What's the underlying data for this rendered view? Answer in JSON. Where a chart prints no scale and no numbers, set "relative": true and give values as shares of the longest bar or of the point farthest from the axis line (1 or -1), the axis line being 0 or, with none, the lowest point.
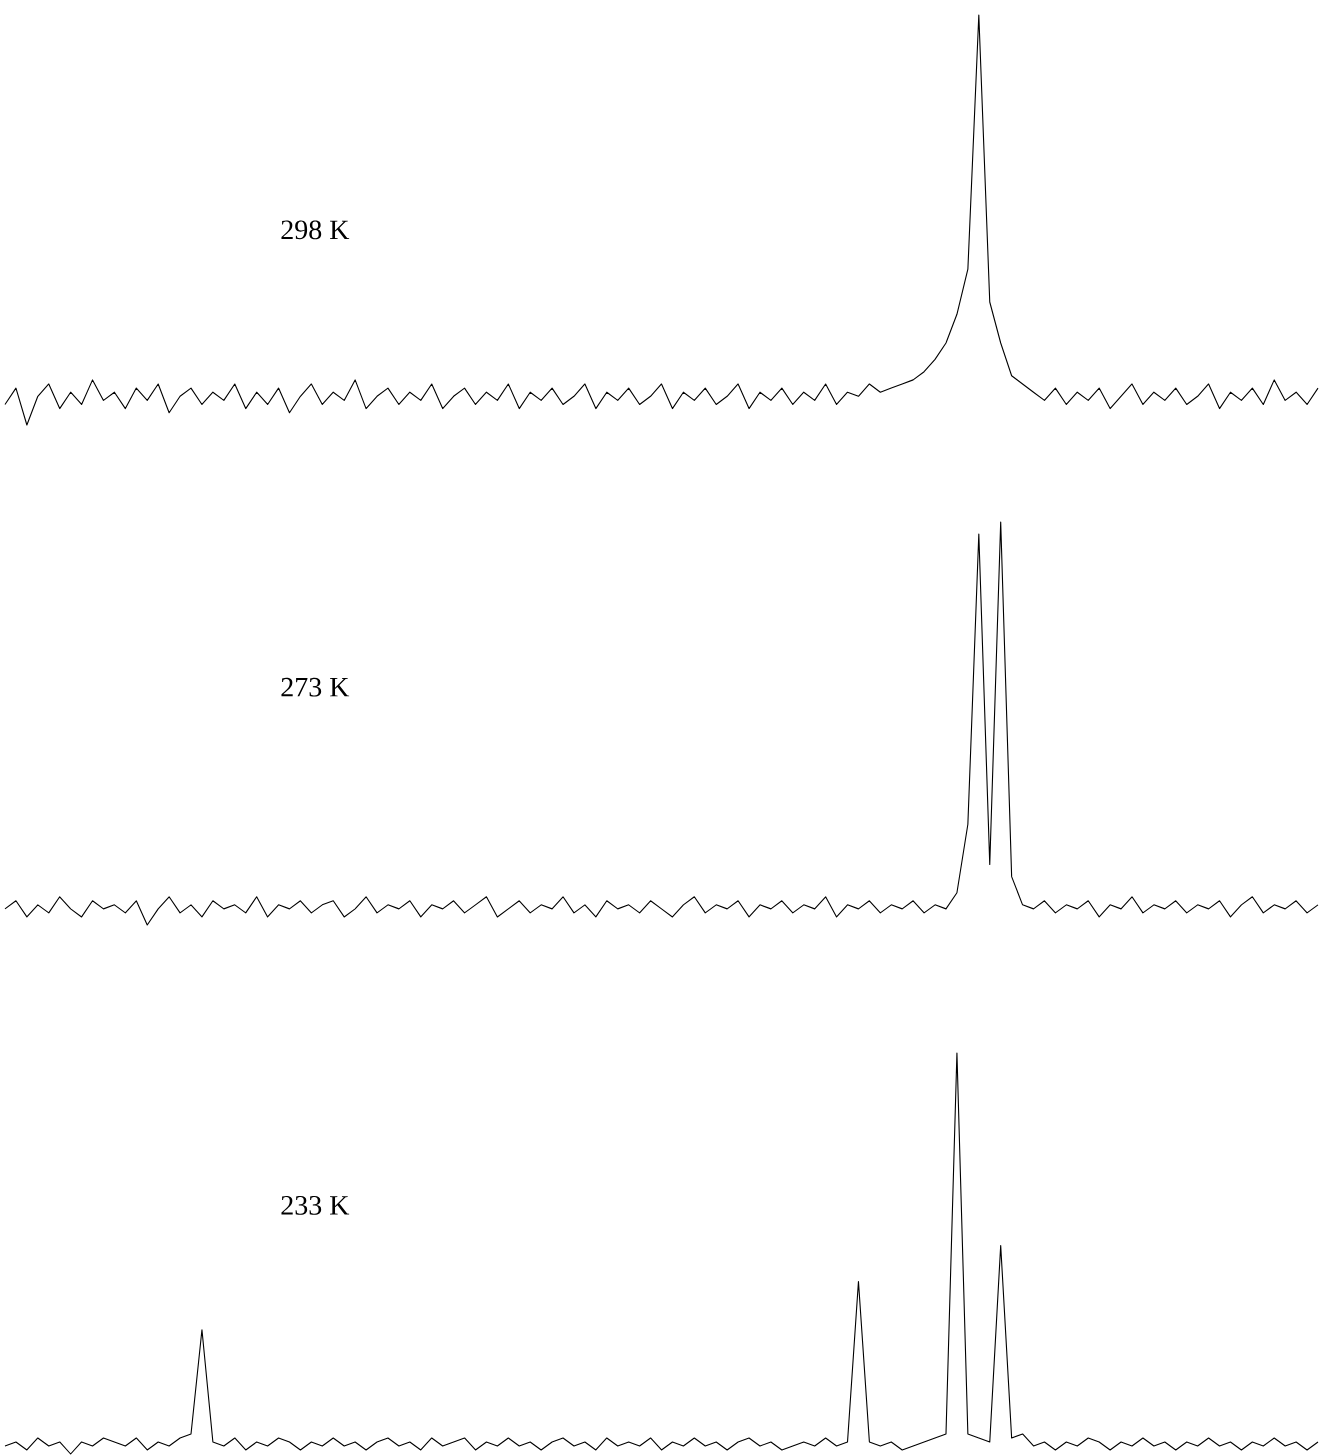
{
  "chart_data": [
    {
      "type": "line",
      "relative": true,
      "color": "#000000",
      "annotations": [
        "298 K"
      ],
      "categories": [
        null,
        null,
        null,
        null,
        null,
        null,
        null,
        null,
        null,
        null,
        null,
        null,
        null,
        null,
        null,
        null,
        null,
        null,
        null,
        null,
        null,
        null,
        null,
        null,
        null,
        null,
        null,
        null,
        null,
        null,
        null,
        null,
        null,
        null,
        null,
        null,
        null,
        null,
        null,
        null,
        null,
        null,
        null,
        null,
        null,
        null,
        null,
        null,
        null,
        null,
        null,
        null,
        null,
        null,
        null,
        null,
        null,
        null,
        null,
        null,
        null,
        null,
        null,
        null,
        null,
        null,
        null,
        null,
        null,
        null,
        null,
        null,
        null,
        null,
        null,
        null,
        null,
        null,
        null,
        null,
        null,
        null,
        null,
        null,
        null,
        null,
        null,
        null,
        null,
        null,
        null,
        null,
        null,
        null,
        null,
        null,
        null,
        null,
        null,
        null,
        null,
        null,
        null,
        null,
        null,
        null,
        null,
        null,
        null,
        null,
        null,
        null,
        null,
        null,
        null,
        null,
        null,
        null,
        null,
        null,
        null
      ],
      "values": [
        0.05,
        0.09,
        0.0,
        0.07,
        0.1,
        0.04,
        0.08,
        0.05,
        0.11,
        0.06,
        0.08,
        0.04,
        0.09,
        0.06,
        0.1,
        0.03,
        0.07,
        0.09,
        0.05,
        0.08,
        0.06,
        0.1,
        0.04,
        0.08,
        0.05,
        0.09,
        0.03,
        0.07,
        0.1,
        0.05,
        0.08,
        0.06,
        0.11,
        0.04,
        0.07,
        0.09,
        0.05,
        0.08,
        0.06,
        0.1,
        0.04,
        0.07,
        0.09,
        0.05,
        0.08,
        0.06,
        0.1,
        0.04,
        0.08,
        0.06,
        0.09,
        0.05,
        0.07,
        0.1,
        0.04,
        0.08,
        0.06,
        0.09,
        0.05,
        0.07,
        0.1,
        0.04,
        0.08,
        0.06,
        0.09,
        0.05,
        0.07,
        0.1,
        0.04,
        0.08,
        0.06,
        0.09,
        0.05,
        0.08,
        0.06,
        0.1,
        0.05,
        0.08,
        0.07,
        0.1,
        0.08,
        0.09,
        0.1,
        0.11,
        0.13,
        0.16,
        0.2,
        0.27,
        0.38,
        1.0,
        0.3,
        0.2,
        0.12,
        0.1,
        0.08,
        0.06,
        0.09,
        0.05,
        0.08,
        0.06,
        0.09,
        0.04,
        0.07,
        0.1,
        0.05,
        0.08,
        0.06,
        0.09,
        0.05,
        0.07,
        0.1,
        0.04,
        0.08,
        0.06,
        0.09,
        0.05,
        0.11,
        0.06,
        0.08,
        0.05,
        0.09
      ]
    },
    {
      "type": "line",
      "relative": true,
      "color": "#000000",
      "annotations": [
        "273 K"
      ],
      "categories": [
        null,
        null,
        null,
        null,
        null,
        null,
        null,
        null,
        null,
        null,
        null,
        null,
        null,
        null,
        null,
        null,
        null,
        null,
        null,
        null,
        null,
        null,
        null,
        null,
        null,
        null,
        null,
        null,
        null,
        null,
        null,
        null,
        null,
        null,
        null,
        null,
        null,
        null,
        null,
        null,
        null,
        null,
        null,
        null,
        null,
        null,
        null,
        null,
        null,
        null,
        null,
        null,
        null,
        null,
        null,
        null,
        null,
        null,
        null,
        null,
        null,
        null,
        null,
        null,
        null,
        null,
        null,
        null,
        null,
        null,
        null,
        null,
        null,
        null,
        null,
        null,
        null,
        null,
        null,
        null,
        null,
        null,
        null,
        null,
        null,
        null,
        null,
        null,
        null,
        null,
        null,
        null,
        null,
        null,
        null,
        null,
        null,
        null,
        null,
        null,
        null,
        null,
        null,
        null,
        null,
        null,
        null,
        null,
        null,
        null,
        null,
        null,
        null,
        null,
        null,
        null,
        null,
        null,
        null,
        null,
        null
      ],
      "values": [
        0.04,
        0.06,
        0.02,
        0.05,
        0.03,
        0.07,
        0.04,
        0.02,
        0.06,
        0.04,
        0.05,
        0.03,
        0.06,
        0.0,
        0.04,
        0.07,
        0.03,
        0.05,
        0.02,
        0.06,
        0.04,
        0.05,
        0.03,
        0.07,
        0.02,
        0.05,
        0.04,
        0.06,
        0.03,
        0.05,
        0.06,
        0.02,
        0.04,
        0.07,
        0.03,
        0.05,
        0.04,
        0.06,
        0.02,
        0.05,
        0.04,
        0.06,
        0.03,
        0.05,
        0.07,
        0.02,
        0.04,
        0.06,
        0.03,
        0.05,
        0.04,
        0.07,
        0.03,
        0.05,
        0.02,
        0.06,
        0.04,
        0.05,
        0.03,
        0.06,
        0.04,
        0.02,
        0.05,
        0.07,
        0.03,
        0.05,
        0.04,
        0.06,
        0.02,
        0.05,
        0.04,
        0.06,
        0.03,
        0.05,
        0.04,
        0.07,
        0.02,
        0.05,
        0.04,
        0.06,
        0.03,
        0.05,
        0.04,
        0.06,
        0.03,
        0.05,
        0.04,
        0.08,
        0.25,
        0.97,
        0.15,
        1.0,
        0.12,
        0.05,
        0.04,
        0.06,
        0.03,
        0.05,
        0.04,
        0.06,
        0.02,
        0.05,
        0.04,
        0.07,
        0.03,
        0.05,
        0.04,
        0.06,
        0.03,
        0.05,
        0.04,
        0.06,
        0.02,
        0.05,
        0.07,
        0.03,
        0.05,
        0.04,
        0.06,
        0.03,
        0.05
      ]
    },
    {
      "type": "line",
      "relative": true,
      "color": "#000000",
      "annotations": [
        "233 K"
      ],
      "categories": [
        null,
        null,
        null,
        null,
        null,
        null,
        null,
        null,
        null,
        null,
        null,
        null,
        null,
        null,
        null,
        null,
        null,
        null,
        null,
        null,
        null,
        null,
        null,
        null,
        null,
        null,
        null,
        null,
        null,
        null,
        null,
        null,
        null,
        null,
        null,
        null,
        null,
        null,
        null,
        null,
        null,
        null,
        null,
        null,
        null,
        null,
        null,
        null,
        null,
        null,
        null,
        null,
        null,
        null,
        null,
        null,
        null,
        null,
        null,
        null,
        null,
        null,
        null,
        null,
        null,
        null,
        null,
        null,
        null,
        null,
        null,
        null,
        null,
        null,
        null,
        null,
        null,
        null,
        null,
        null,
        null,
        null,
        null,
        null,
        null,
        null,
        null,
        null,
        null,
        null,
        null,
        null,
        null,
        null,
        null,
        null,
        null,
        null,
        null,
        null,
        null,
        null,
        null,
        null,
        null,
        null,
        null,
        null,
        null,
        null,
        null,
        null,
        null,
        null,
        null,
        null,
        null,
        null,
        null,
        null,
        null
      ],
      "values": [
        0.02,
        0.03,
        0.01,
        0.04,
        0.02,
        0.03,
        0.0,
        0.03,
        0.02,
        0.04,
        0.03,
        0.02,
        0.04,
        0.01,
        0.03,
        0.02,
        0.04,
        0.05,
        0.31,
        0.03,
        0.02,
        0.04,
        0.01,
        0.03,
        0.02,
        0.04,
        0.03,
        0.01,
        0.03,
        0.02,
        0.04,
        0.02,
        0.03,
        0.01,
        0.03,
        0.04,
        0.02,
        0.03,
        0.01,
        0.04,
        0.02,
        0.03,
        0.04,
        0.01,
        0.03,
        0.02,
        0.04,
        0.02,
        0.03,
        0.01,
        0.03,
        0.04,
        0.02,
        0.03,
        0.01,
        0.04,
        0.02,
        0.03,
        0.02,
        0.04,
        0.01,
        0.03,
        0.02,
        0.04,
        0.02,
        0.03,
        0.01,
        0.03,
        0.04,
        0.02,
        0.03,
        0.01,
        0.02,
        0.03,
        0.02,
        0.04,
        0.02,
        0.03,
        0.43,
        0.03,
        0.02,
        0.03,
        0.01,
        0.02,
        0.03,
        0.04,
        0.05,
        1.0,
        0.05,
        0.04,
        0.03,
        0.52,
        0.04,
        0.05,
        0.02,
        0.03,
        0.01,
        0.03,
        0.02,
        0.04,
        0.03,
        0.01,
        0.03,
        0.02,
        0.04,
        0.02,
        0.03,
        0.01,
        0.03,
        0.02,
        0.04,
        0.02,
        0.03,
        0.01,
        0.03,
        0.02,
        0.04,
        0.02,
        0.03,
        0.01,
        0.03
      ]
    }
  ]
}
